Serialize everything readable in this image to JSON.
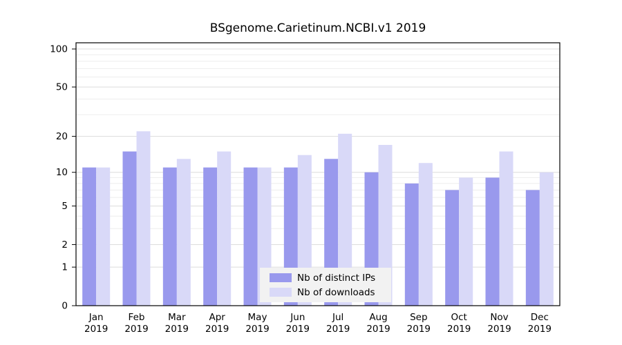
{
  "chart_data": {
    "type": "bar",
    "title": "BSgenome.Carietinum.NCBI.v1 2019",
    "categories": [
      "Jan",
      "Feb",
      "Mar",
      "Apr",
      "May",
      "Jun",
      "Jul",
      "Aug",
      "Sep",
      "Oct",
      "Nov",
      "Dec"
    ],
    "year": "2019",
    "series": [
      {
        "name": "Nb of distinct IPs",
        "color": "#9999ed",
        "values": [
          11,
          15,
          11,
          11,
          11,
          11,
          13,
          10,
          8,
          7,
          9,
          7
        ]
      },
      {
        "name": "Nb of downloads",
        "color": "#d9d9f8",
        "values": [
          11,
          22,
          13,
          15,
          11,
          14,
          21,
          17,
          12,
          9,
          15,
          10
        ]
      }
    ],
    "yticks": [
      0,
      1,
      2,
      5,
      10,
      20,
      50,
      100
    ],
    "grid_values": [
      1,
      2,
      3,
      4,
      5,
      6,
      7,
      8,
      9,
      10,
      20,
      30,
      40,
      50,
      60,
      70,
      80,
      90,
      100
    ],
    "yscale": "log1p",
    "ylim": [
      0,
      100
    ],
    "grid": true,
    "legend_position": "bottom-center-inside"
  }
}
